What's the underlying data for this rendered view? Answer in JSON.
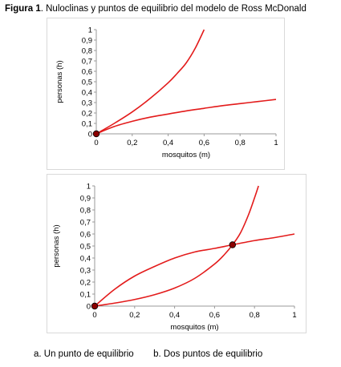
{
  "figure": {
    "label": "Figura 1",
    "title": ". Nuloclinas y puntos de equilibrio del modelo de Ross McDonald"
  },
  "sub_captions": {
    "a": "a.   Un punto de equilibrio",
    "b": "b. Dos puntos de equilibrio"
  },
  "colors": {
    "curve": "#e31b1b",
    "point": "#8b0000",
    "axis": "#999999",
    "frame": "#d9d9d9"
  },
  "chart_data": [
    {
      "type": "line",
      "title": "",
      "xlabel": "mosquitos  (m)",
      "ylabel": "personas  (h)",
      "xlim": [
        0,
        1
      ],
      "ylim": [
        0,
        1
      ],
      "xticks": [
        "0",
        "0,2",
        "0,4",
        "0,6",
        "0,8",
        "1"
      ],
      "yticks": [
        "0",
        "0,1",
        "0,2",
        "0,3",
        "0,4",
        "0,5",
        "0,6",
        "0,7",
        "0,8",
        "0,9",
        "1"
      ],
      "grid": false,
      "series": [
        {
          "x": [
            0,
            0.1,
            0.2,
            0.3,
            0.4,
            0.45,
            0.5,
            0.55,
            0.6
          ],
          "y": [
            0,
            0.1,
            0.21,
            0.34,
            0.49,
            0.58,
            0.68,
            0.82,
            1.0
          ]
        },
        {
          "x": [
            0,
            0.1,
            0.2,
            0.3,
            0.4,
            0.5,
            0.6,
            0.7,
            0.8,
            0.9,
            1.0
          ],
          "y": [
            0,
            0.07,
            0.12,
            0.16,
            0.19,
            0.22,
            0.245,
            0.27,
            0.29,
            0.31,
            0.33
          ]
        }
      ],
      "points": [
        {
          "x": 0,
          "y": 0
        }
      ]
    },
    {
      "type": "line",
      "title": "",
      "xlabel": "mosquitos  (m)",
      "ylabel": "personas  (h)",
      "xlim": [
        0,
        1
      ],
      "ylim": [
        0,
        1
      ],
      "xticks": [
        "0",
        "0,2",
        "0,4",
        "0,6",
        "0,8",
        "1"
      ],
      "yticks": [
        "0",
        "0,1",
        "0,2",
        "0,3",
        "0,4",
        "0,5",
        "0,6",
        "0,7",
        "0,8",
        "0,9",
        "1"
      ],
      "grid": false,
      "series": [
        {
          "x": [
            0,
            0.1,
            0.2,
            0.3,
            0.4,
            0.5,
            0.6,
            0.65,
            0.69,
            0.73,
            0.77,
            0.8,
            0.82
          ],
          "y": [
            0,
            0.025,
            0.055,
            0.095,
            0.15,
            0.23,
            0.35,
            0.43,
            0.51,
            0.61,
            0.76,
            0.9,
            1.0
          ]
        },
        {
          "x": [
            0,
            0.1,
            0.2,
            0.3,
            0.4,
            0.5,
            0.6,
            0.69,
            0.8,
            0.9,
            1.0
          ],
          "y": [
            0,
            0.14,
            0.25,
            0.33,
            0.4,
            0.45,
            0.48,
            0.51,
            0.545,
            0.57,
            0.6
          ]
        }
      ],
      "points": [
        {
          "x": 0,
          "y": 0
        },
        {
          "x": 0.69,
          "y": 0.51
        }
      ]
    }
  ]
}
